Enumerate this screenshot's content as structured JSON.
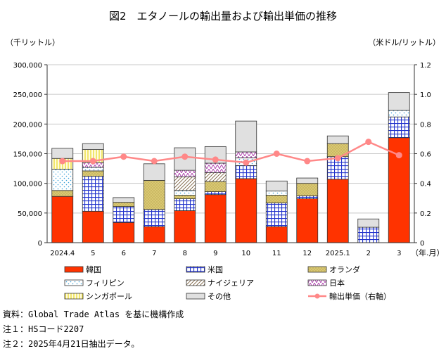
{
  "chart_data": {
    "type": "bar",
    "title": "図2　エタノールの輸出量および輸出単価の推移",
    "ylabel_left": "（千リットル）",
    "ylabel_right": "（米ドル/リットル）",
    "xlabel_unit": "（年.月）",
    "categories": [
      "2024.4",
      "5",
      "6",
      "7",
      "8",
      "9",
      "10",
      "11",
      "12",
      "2025.1",
      "2",
      "3"
    ],
    "ylim_left": [
      0,
      300000
    ],
    "yticks_left": [
      "0",
      "50,000",
      "100,000",
      "150,000",
      "200,000",
      "250,000",
      "300,000"
    ],
    "ylim_right": [
      0,
      1.2
    ],
    "yticks_right": [
      "0",
      "0.2",
      "0.4",
      "0.6",
      "0.8",
      "1.0",
      "1.2"
    ],
    "series": [
      {
        "name": "韓国",
        "key": "korea",
        "values": [
          78000,
          53000,
          34000,
          27000,
          54000,
          81000,
          108000,
          27000,
          74000,
          107000,
          0,
          177000
        ]
      },
      {
        "name": "米国",
        "key": "usa",
        "values": [
          0,
          59000,
          27000,
          29000,
          20000,
          5000,
          22000,
          40000,
          5000,
          38000,
          26000,
          35000
        ]
      },
      {
        "name": "オランダ",
        "key": "netherlands",
        "values": [
          10000,
          9000,
          7000,
          49000,
          6000,
          17000,
          0,
          13000,
          21000,
          22000,
          0,
          0
        ]
      },
      {
        "name": "フィリピン",
        "key": "philippines",
        "values": [
          36000,
          6000,
          0,
          0,
          8000,
          0,
          13000,
          7000,
          0,
          0,
          0,
          11000
        ]
      },
      {
        "name": "ナイジェリア",
        "key": "nigeria",
        "values": [
          0,
          0,
          0,
          0,
          23000,
          15000,
          0,
          0,
          0,
          0,
          0,
          0
        ]
      },
      {
        "name": "日本",
        "key": "japan",
        "values": [
          0,
          8000,
          0,
          0,
          11000,
          16000,
          10000,
          0,
          0,
          0,
          0,
          0
        ]
      },
      {
        "name": "シンガポール",
        "key": "singapore",
        "values": [
          18000,
          22000,
          0,
          0,
          0,
          0,
          0,
          0,
          0,
          0,
          0,
          0
        ]
      },
      {
        "name": "その他",
        "key": "other",
        "values": [
          17000,
          10000,
          8000,
          28000,
          38000,
          28000,
          52000,
          17000,
          9000,
          13000,
          14000,
          30000
        ]
      }
    ],
    "line_series": {
      "name": "輸出単価（右軸）",
      "values": [
        0.55,
        0.55,
        0.58,
        0.55,
        0.58,
        0.56,
        0.54,
        0.6,
        0.55,
        0.57,
        0.68,
        0.59
      ]
    }
  },
  "notes": [
    "資料：Global Trade Atlas を基に機構作成",
    "注１：HSコード2207",
    "注２：2025年4月21日抽出データ。"
  ],
  "colors": {
    "korea": "#ff3300",
    "usa": "#2233cc",
    "netherlands": "#d9c873",
    "philippines": "#5ab8e8",
    "nigeria": "#a08060",
    "japan": "#b048b0",
    "singapore": "#f2e84a",
    "other": "#e0e0e0",
    "line": "#ff8888"
  }
}
